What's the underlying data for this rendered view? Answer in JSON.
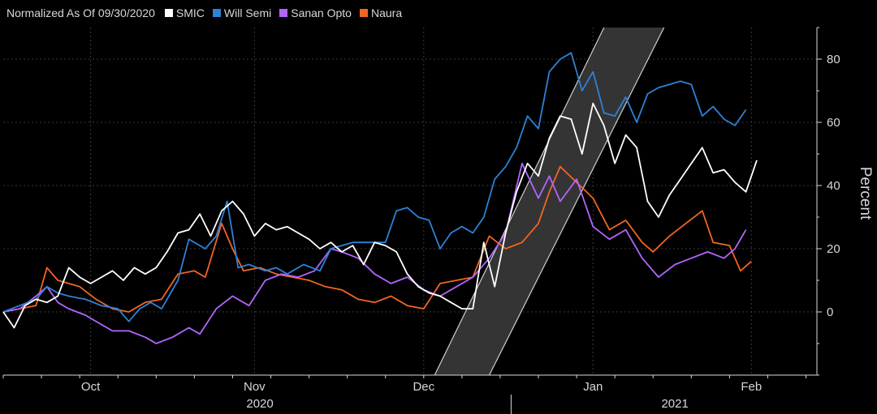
{
  "chart_data": {
    "type": "line",
    "legend_title": "Normalized As Of 09/30/2020",
    "legend_position": "top-left",
    "ylabel": "Percent",
    "ylim": [
      -20,
      90
    ],
    "yticks": [
      0,
      20,
      40,
      60,
      80
    ],
    "xlim": [
      "2020-09-30",
      "2021-02-26"
    ],
    "month_ticks": [
      {
        "label": "Oct",
        "date": "2020-10-16"
      },
      {
        "label": "Nov",
        "date": "2020-11-15"
      },
      {
        "label": "Dec",
        "date": "2020-12-16"
      },
      {
        "label": "Jan",
        "date": "2021-01-16"
      },
      {
        "label": "Feb",
        "date": "2021-02-14"
      }
    ],
    "year_labels": [
      {
        "label": "2020",
        "date": "2020-11-16"
      },
      {
        "label": "2021",
        "date": "2021-01-31"
      }
    ],
    "year_separator": "2021-01-01",
    "band": {
      "fill": "#3a3a3a",
      "edge": "#cfcfcf",
      "lower_left": [
        "2020-12-18",
        -20
      ],
      "lower_right": [
        "2020-12-28",
        -20
      ],
      "upper_left": [
        "2021-01-18",
        90
      ],
      "upper_right": [
        "2021-01-29",
        90
      ]
    },
    "series": [
      {
        "name": "SMIC",
        "color": "#ffffff",
        "points": [
          [
            "2020-09-30",
            0
          ],
          [
            "2020-10-02",
            -5
          ],
          [
            "2020-10-04",
            2
          ],
          [
            "2020-10-06",
            4
          ],
          [
            "2020-10-08",
            3
          ],
          [
            "2020-10-10",
            5
          ],
          [
            "2020-10-12",
            14
          ],
          [
            "2020-10-14",
            11
          ],
          [
            "2020-10-16",
            9
          ],
          [
            "2020-10-18",
            11
          ],
          [
            "2020-10-20",
            13
          ],
          [
            "2020-10-22",
            10
          ],
          [
            "2020-10-24",
            14
          ],
          [
            "2020-10-26",
            12
          ],
          [
            "2020-10-28",
            14
          ],
          [
            "2020-10-30",
            19
          ],
          [
            "2020-11-01",
            25
          ],
          [
            "2020-11-03",
            26
          ],
          [
            "2020-11-05",
            31
          ],
          [
            "2020-11-07",
            24
          ],
          [
            "2020-11-09",
            32
          ],
          [
            "2020-11-11",
            35
          ],
          [
            "2020-11-13",
            31
          ],
          [
            "2020-11-15",
            24
          ],
          [
            "2020-11-17",
            28
          ],
          [
            "2020-11-19",
            26
          ],
          [
            "2020-11-21",
            27
          ],
          [
            "2020-11-23",
            25
          ],
          [
            "2020-11-25",
            23
          ],
          [
            "2020-11-27",
            20
          ],
          [
            "2020-11-29",
            22
          ],
          [
            "2020-12-01",
            19
          ],
          [
            "2020-12-03",
            21
          ],
          [
            "2020-12-05",
            15
          ],
          [
            "2020-12-07",
            22
          ],
          [
            "2020-12-09",
            21
          ],
          [
            "2020-12-11",
            19
          ],
          [
            "2020-12-13",
            12
          ],
          [
            "2020-12-15",
            8
          ],
          [
            "2020-12-17",
            6
          ],
          [
            "2020-12-19",
            5
          ],
          [
            "2020-12-21",
            3
          ],
          [
            "2020-12-23",
            1
          ],
          [
            "2020-12-25",
            1
          ],
          [
            "2020-12-27",
            22
          ],
          [
            "2020-12-29",
            8
          ],
          [
            "2020-12-31",
            25
          ],
          [
            "2021-01-02",
            38
          ],
          [
            "2021-01-04",
            47
          ],
          [
            "2021-01-06",
            43
          ],
          [
            "2021-01-08",
            55
          ],
          [
            "2021-01-10",
            62
          ],
          [
            "2021-01-12",
            61
          ],
          [
            "2021-01-14",
            50
          ],
          [
            "2021-01-16",
            66
          ],
          [
            "2021-01-18",
            59
          ],
          [
            "2021-01-20",
            47
          ],
          [
            "2021-01-22",
            56
          ],
          [
            "2021-01-24",
            52
          ],
          [
            "2021-01-26",
            35
          ],
          [
            "2021-01-28",
            30
          ],
          [
            "2021-01-30",
            37
          ],
          [
            "2021-02-01",
            42
          ],
          [
            "2021-02-03",
            47
          ],
          [
            "2021-02-05",
            52
          ],
          [
            "2021-02-07",
            44
          ],
          [
            "2021-02-09",
            45
          ],
          [
            "2021-02-11",
            41
          ],
          [
            "2021-02-13",
            38
          ],
          [
            "2021-02-15",
            48
          ]
        ]
      },
      {
        "name": "Will Semi",
        "color": "#2d82d8",
        "points": [
          [
            "2020-09-30",
            0
          ],
          [
            "2020-10-03",
            2
          ],
          [
            "2020-10-06",
            4
          ],
          [
            "2020-10-08",
            8
          ],
          [
            "2020-10-10",
            6
          ],
          [
            "2020-10-12",
            5
          ],
          [
            "2020-10-15",
            4
          ],
          [
            "2020-10-18",
            2
          ],
          [
            "2020-10-21",
            1
          ],
          [
            "2020-10-23",
            -3
          ],
          [
            "2020-10-25",
            1
          ],
          [
            "2020-10-27",
            3
          ],
          [
            "2020-10-29",
            1
          ],
          [
            "2020-11-01",
            10
          ],
          [
            "2020-11-03",
            23
          ],
          [
            "2020-11-06",
            20
          ],
          [
            "2020-11-08",
            24
          ],
          [
            "2020-11-10",
            35
          ],
          [
            "2020-11-12",
            14
          ],
          [
            "2020-11-14",
            15
          ],
          [
            "2020-11-17",
            13
          ],
          [
            "2020-11-19",
            14
          ],
          [
            "2020-11-21",
            12
          ],
          [
            "2020-11-24",
            15
          ],
          [
            "2020-11-27",
            13
          ],
          [
            "2020-11-29",
            20
          ],
          [
            "2020-12-01",
            21
          ],
          [
            "2020-12-03",
            22
          ],
          [
            "2020-12-06",
            22
          ],
          [
            "2020-12-09",
            22
          ],
          [
            "2020-12-11",
            32
          ],
          [
            "2020-12-13",
            33
          ],
          [
            "2020-12-15",
            30
          ],
          [
            "2020-12-17",
            29
          ],
          [
            "2020-12-19",
            20
          ],
          [
            "2020-12-21",
            25
          ],
          [
            "2020-12-23",
            27
          ],
          [
            "2020-12-25",
            25
          ],
          [
            "2020-12-27",
            30
          ],
          [
            "2020-12-29",
            42
          ],
          [
            "2020-12-31",
            46
          ],
          [
            "2021-01-02",
            52
          ],
          [
            "2021-01-04",
            62
          ],
          [
            "2021-01-06",
            58
          ],
          [
            "2021-01-08",
            76
          ],
          [
            "2021-01-10",
            80
          ],
          [
            "2021-01-12",
            82
          ],
          [
            "2021-01-14",
            70
          ],
          [
            "2021-01-16",
            76
          ],
          [
            "2021-01-18",
            63
          ],
          [
            "2021-01-20",
            62
          ],
          [
            "2021-01-22",
            68
          ],
          [
            "2021-01-24",
            60
          ],
          [
            "2021-01-26",
            69
          ],
          [
            "2021-01-28",
            71
          ],
          [
            "2021-01-30",
            72
          ],
          [
            "2021-02-01",
            73
          ],
          [
            "2021-02-03",
            72
          ],
          [
            "2021-02-05",
            62
          ],
          [
            "2021-02-07",
            65
          ],
          [
            "2021-02-09",
            61
          ],
          [
            "2021-02-11",
            59
          ],
          [
            "2021-02-13",
            64
          ]
        ]
      },
      {
        "name": "Sanan Opto",
        "color": "#b266ff",
        "points": [
          [
            "2020-09-30",
            0
          ],
          [
            "2020-10-03",
            1
          ],
          [
            "2020-10-06",
            5
          ],
          [
            "2020-10-08",
            8
          ],
          [
            "2020-10-10",
            3
          ],
          [
            "2020-10-12",
            1
          ],
          [
            "2020-10-15",
            -1
          ],
          [
            "2020-10-18",
            -4
          ],
          [
            "2020-10-20",
            -6
          ],
          [
            "2020-10-23",
            -6
          ],
          [
            "2020-10-26",
            -8
          ],
          [
            "2020-10-28",
            -10
          ],
          [
            "2020-10-31",
            -8
          ],
          [
            "2020-11-03",
            -5
          ],
          [
            "2020-11-05",
            -7
          ],
          [
            "2020-11-08",
            1
          ],
          [
            "2020-11-11",
            5
          ],
          [
            "2020-11-14",
            2
          ],
          [
            "2020-11-17",
            10
          ],
          [
            "2020-11-20",
            12
          ],
          [
            "2020-11-23",
            11
          ],
          [
            "2020-11-26",
            13
          ],
          [
            "2020-11-29",
            20
          ],
          [
            "2020-12-01",
            19
          ],
          [
            "2020-12-04",
            17
          ],
          [
            "2020-12-07",
            12
          ],
          [
            "2020-12-10",
            9
          ],
          [
            "2020-12-13",
            11
          ],
          [
            "2020-12-16",
            7
          ],
          [
            "2020-12-19",
            5
          ],
          [
            "2020-12-22",
            8
          ],
          [
            "2020-12-25",
            11
          ],
          [
            "2020-12-28",
            17
          ],
          [
            "2020-12-31",
            25
          ],
          [
            "2021-01-03",
            47
          ],
          [
            "2021-01-06",
            36
          ],
          [
            "2021-01-08",
            43
          ],
          [
            "2021-01-10",
            35
          ],
          [
            "2021-01-13",
            42
          ],
          [
            "2021-01-16",
            27
          ],
          [
            "2021-01-19",
            23
          ],
          [
            "2021-01-22",
            26
          ],
          [
            "2021-01-25",
            17
          ],
          [
            "2021-01-28",
            11
          ],
          [
            "2021-01-31",
            15
          ],
          [
            "2021-02-03",
            17
          ],
          [
            "2021-02-06",
            19
          ],
          [
            "2021-02-09",
            17
          ],
          [
            "2021-02-11",
            20
          ],
          [
            "2021-02-13",
            26
          ]
        ]
      },
      {
        "name": "Naura",
        "color": "#f26522",
        "points": [
          [
            "2020-09-30",
            0
          ],
          [
            "2020-10-03",
            1
          ],
          [
            "2020-10-06",
            2
          ],
          [
            "2020-10-08",
            14
          ],
          [
            "2020-10-10",
            10
          ],
          [
            "2020-10-12",
            9
          ],
          [
            "2020-10-14",
            8
          ],
          [
            "2020-10-17",
            4
          ],
          [
            "2020-10-20",
            1
          ],
          [
            "2020-10-23",
            0
          ],
          [
            "2020-10-26",
            3
          ],
          [
            "2020-10-29",
            4
          ],
          [
            "2020-11-01",
            12
          ],
          [
            "2020-11-04",
            13
          ],
          [
            "2020-11-06",
            11
          ],
          [
            "2020-11-09",
            28
          ],
          [
            "2020-11-11",
            20
          ],
          [
            "2020-11-13",
            13
          ],
          [
            "2020-11-16",
            14
          ],
          [
            "2020-11-19",
            12
          ],
          [
            "2020-11-22",
            11
          ],
          [
            "2020-11-25",
            10
          ],
          [
            "2020-11-28",
            8
          ],
          [
            "2020-12-01",
            7
          ],
          [
            "2020-12-04",
            4
          ],
          [
            "2020-12-07",
            3
          ],
          [
            "2020-12-10",
            5
          ],
          [
            "2020-12-13",
            2
          ],
          [
            "2020-12-16",
            1
          ],
          [
            "2020-12-19",
            9
          ],
          [
            "2020-12-22",
            10
          ],
          [
            "2020-12-25",
            11
          ],
          [
            "2020-12-28",
            24
          ],
          [
            "2020-12-31",
            20
          ],
          [
            "2021-01-03",
            22
          ],
          [
            "2021-01-06",
            28
          ],
          [
            "2021-01-08",
            38
          ],
          [
            "2021-01-10",
            46
          ],
          [
            "2021-01-13",
            41
          ],
          [
            "2021-01-16",
            36
          ],
          [
            "2021-01-19",
            26
          ],
          [
            "2021-01-22",
            29
          ],
          [
            "2021-01-25",
            22
          ],
          [
            "2021-01-27",
            19
          ],
          [
            "2021-01-30",
            24
          ],
          [
            "2021-02-02",
            28
          ],
          [
            "2021-02-05",
            32
          ],
          [
            "2021-02-07",
            22
          ],
          [
            "2021-02-10",
            21
          ],
          [
            "2021-02-12",
            13
          ],
          [
            "2021-02-14",
            16
          ]
        ]
      }
    ]
  },
  "colors": {
    "background": "#000000",
    "grid": "#3a3a3a",
    "axis": "#d8d8d8",
    "text": "#d8d8d8"
  }
}
